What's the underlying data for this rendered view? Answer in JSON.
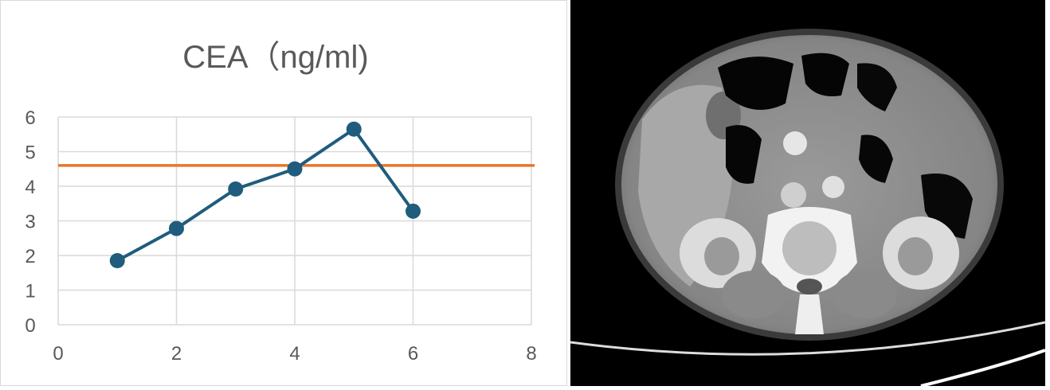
{
  "chart_data": {
    "type": "scatter",
    "title": "CEA（ng/ml)",
    "xlabel": "",
    "ylabel": "",
    "xlim": [
      0,
      8
    ],
    "ylim": [
      0,
      6
    ],
    "x_ticks": [
      "0",
      "2",
      "4",
      "6",
      "8"
    ],
    "y_ticks": [
      "0",
      "1",
      "2",
      "3",
      "4",
      "5",
      "6"
    ],
    "grid": true,
    "legend": "none",
    "series": [
      {
        "color": "#1f5c7d",
        "points": [
          [
            1,
            1.85
          ],
          [
            2,
            2.78
          ],
          [
            3,
            3.92
          ],
          [
            4,
            4.5
          ],
          [
            5,
            5.65
          ],
          [
            6,
            3.28
          ]
        ]
      }
    ],
    "reference_line": {
      "y": 4.6,
      "color": "#e8762d"
    }
  },
  "ct_image": {
    "description_icon": "ct-abdomen-scan"
  }
}
